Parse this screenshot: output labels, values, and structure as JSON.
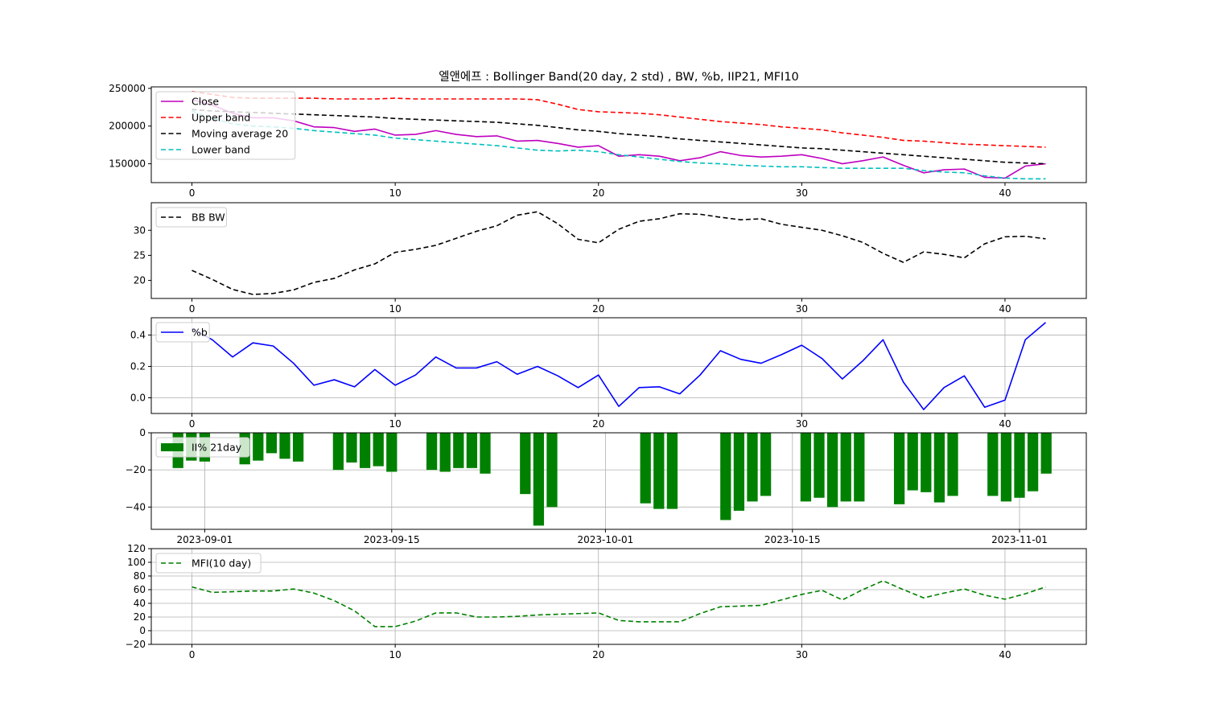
{
  "title": "엘앤에프 : Bollinger Band(20 day, 2 std) , BW, %b, IIP21, MFI10",
  "chart_data": [
    {
      "id": "bollinger",
      "type": "line",
      "x": [
        0,
        1,
        2,
        3,
        4,
        5,
        6,
        7,
        8,
        9,
        10,
        11,
        12,
        13,
        14,
        15,
        16,
        17,
        18,
        19,
        20,
        21,
        22,
        23,
        24,
        25,
        26,
        27,
        28,
        29,
        30,
        31,
        32,
        33,
        34,
        35,
        36,
        37,
        38,
        39,
        40,
        41,
        42
      ],
      "xlim": [
        -2,
        44
      ],
      "ylim": [
        125000,
        252000
      ],
      "xticks": [
        "0",
        "10",
        "20",
        "30",
        "40"
      ],
      "xtick_values": [
        0,
        10,
        20,
        30,
        40
      ],
      "yticks": [
        "150000",
        "200000",
        "250000"
      ],
      "ytick_values": [
        150000,
        200000,
        250000
      ],
      "legend_position": "upper-left",
      "series": [
        {
          "name": "Close",
          "color": "#bf00bf",
          "dash": "solid",
          "values": [
            235000,
            228000,
            217000,
            211000,
            211000,
            207000,
            199000,
            198000,
            193000,
            196000,
            188000,
            189000,
            194000,
            189000,
            186000,
            187000,
            180000,
            181000,
            177000,
            172000,
            174000,
            160000,
            162000,
            160000,
            154000,
            158000,
            166000,
            161000,
            159000,
            160000,
            162000,
            157000,
            150000,
            154000,
            159000,
            148000,
            138000,
            142000,
            143000,
            132000,
            131000,
            147000,
            150000
          ]
        },
        {
          "name": "Upper band",
          "color": "#ff0000",
          "dash": "dashed",
          "values": [
            246000,
            242000,
            238000,
            237000,
            237000,
            237000,
            237000,
            236000,
            236000,
            236000,
            237000,
            236000,
            236000,
            236000,
            236000,
            236000,
            236000,
            235000,
            229000,
            222000,
            219000,
            218000,
            217000,
            215000,
            212000,
            209000,
            206000,
            204000,
            202000,
            199000,
            197000,
            195000,
            191000,
            188000,
            185000,
            181000,
            180000,
            178000,
            176000,
            175000,
            174000,
            173000,
            172000
          ]
        },
        {
          "name": "Moving average 20",
          "color": "#000000",
          "dash": "dashed",
          "values": [
            222000,
            220000,
            219000,
            218000,
            217000,
            216000,
            215000,
            214000,
            213000,
            212000,
            210000,
            209000,
            208000,
            207000,
            206000,
            205000,
            203000,
            201000,
            198000,
            195000,
            193000,
            190000,
            188000,
            186000,
            183000,
            181000,
            179000,
            177000,
            175000,
            173000,
            171000,
            170000,
            168000,
            166000,
            164000,
            162000,
            160000,
            158000,
            156000,
            154000,
            152000,
            151000,
            150000
          ]
        },
        {
          "name": "Lower band",
          "color": "#00bfbf",
          "dash": "dashed",
          "values": [
            220000,
            210000,
            203000,
            200000,
            199000,
            197000,
            194000,
            192000,
            190000,
            188000,
            184000,
            182000,
            180000,
            178000,
            176000,
            174000,
            171000,
            168000,
            167000,
            168000,
            166000,
            162000,
            159000,
            156000,
            153000,
            151000,
            150000,
            148000,
            147000,
            146000,
            146000,
            145000,
            144000,
            144000,
            144000,
            144000,
            141000,
            139000,
            138000,
            134000,
            131000,
            130000,
            130000
          ]
        }
      ]
    },
    {
      "id": "bandwidth",
      "type": "line",
      "x": [
        0,
        1,
        2,
        3,
        4,
        5,
        6,
        7,
        8,
        9,
        10,
        11,
        12,
        13,
        14,
        15,
        16,
        17,
        18,
        19,
        20,
        21,
        22,
        23,
        24,
        25,
        26,
        27,
        28,
        29,
        30,
        31,
        32,
        33,
        34,
        35,
        36,
        37,
        38,
        39,
        40,
        41,
        42
      ],
      "xlim": [
        -2,
        44
      ],
      "ylim": [
        16.4,
        35.5
      ],
      "xticks": [
        "0",
        "10",
        "20",
        "30",
        "40"
      ],
      "xtick_values": [
        0,
        10,
        20,
        30,
        40
      ],
      "yticks": [
        "20",
        "25",
        "30"
      ],
      "ytick_values": [
        20,
        25,
        30
      ],
      "legend_position": "upper-left",
      "series": [
        {
          "name": "BB BW",
          "color": "#000000",
          "dash": "dashed",
          "values": [
            22.0,
            20.2,
            18.2,
            17.2,
            17.4,
            18.1,
            19.6,
            20.4,
            22.1,
            23.3,
            25.6,
            26.2,
            27.0,
            28.4,
            29.8,
            30.9,
            33.0,
            33.7,
            31.3,
            28.2,
            27.5,
            30.2,
            31.8,
            32.3,
            33.3,
            33.2,
            32.6,
            32.1,
            32.3,
            31.2,
            30.6,
            30.0,
            28.9,
            27.6,
            25.4,
            23.6,
            25.7,
            25.2,
            24.5,
            27.3,
            28.7,
            28.8,
            28.3
          ]
        }
      ]
    },
    {
      "id": "percent_b",
      "type": "line",
      "x": [
        0,
        1,
        2,
        3,
        4,
        5,
        6,
        7,
        8,
        9,
        10,
        11,
        12,
        13,
        14,
        15,
        16,
        17,
        18,
        19,
        20,
        21,
        22,
        23,
        24,
        25,
        26,
        27,
        28,
        29,
        30,
        31,
        32,
        33,
        34,
        35,
        36,
        37,
        38,
        39,
        40,
        41,
        42
      ],
      "xlim": [
        -2,
        44
      ],
      "ylim": [
        -0.1,
        0.51
      ],
      "xticks": [
        "0",
        "10",
        "20",
        "30",
        "40"
      ],
      "xtick_values": [
        0,
        10,
        20,
        30,
        40
      ],
      "yticks": [
        "0.0",
        "0.2",
        "0.4"
      ],
      "ytick_values": [
        0.0,
        0.2,
        0.4
      ],
      "grid": true,
      "legend_position": "upper-left",
      "series": [
        {
          "name": "%b",
          "color": "#0000ff",
          "dash": "solid",
          "values": [
            0.44,
            0.37,
            0.26,
            0.35,
            0.33,
            0.22,
            0.08,
            0.115,
            0.07,
            0.18,
            0.08,
            0.145,
            0.26,
            0.19,
            0.19,
            0.23,
            0.15,
            0.2,
            0.14,
            0.065,
            0.145,
            -0.055,
            0.065,
            0.07,
            0.025,
            0.145,
            0.3,
            0.245,
            0.22,
            0.275,
            0.335,
            0.25,
            0.12,
            0.235,
            0.37,
            0.1,
            -0.075,
            0.065,
            0.14,
            -0.06,
            -0.015,
            0.37,
            0.48
          ]
        }
      ]
    },
    {
      "id": "iip21",
      "type": "bar",
      "x_dates": [
        "2023-08-30",
        "2023-08-31",
        "2023-09-01",
        "2023-09-04",
        "2023-09-05",
        "2023-09-06",
        "2023-09-07",
        "2023-09-08",
        "2023-09-11",
        "2023-09-12",
        "2023-09-13",
        "2023-09-14",
        "2023-09-15",
        "2023-09-18",
        "2023-09-19",
        "2023-09-20",
        "2023-09-21",
        "2023-09-22",
        "2023-09-25",
        "2023-09-26",
        "2023-09-27",
        "2023-10-04",
        "2023-10-05",
        "2023-10-06",
        "2023-10-10",
        "2023-10-11",
        "2023-10-12",
        "2023-10-13",
        "2023-10-16",
        "2023-10-17",
        "2023-10-18",
        "2023-10-19",
        "2023-10-20",
        "2023-10-23",
        "2023-10-24",
        "2023-10-25",
        "2023-10-26",
        "2023-10-27",
        "2023-10-30",
        "2023-10-31",
        "2023-11-01",
        "2023-11-02",
        "2023-11-03"
      ],
      "values": [
        -19,
        -15,
        -15.5,
        -17,
        -15,
        -11,
        -14,
        -15.5,
        -20,
        -16,
        -19,
        -18,
        -21,
        -20,
        -21,
        -19,
        -19,
        -22,
        -33,
        -50,
        -40,
        -38,
        -41,
        -41,
        -47,
        -42,
        -37,
        -34,
        -37,
        -35,
        -40,
        -37,
        -37,
        -38.5,
        -31,
        -32,
        -37.5,
        -34,
        -34,
        -37,
        -35,
        -31.5,
        -22
      ],
      "xlim_dates": [
        "2023-08-28",
        "2023-11-06"
      ],
      "ylim": [
        -52,
        0
      ],
      "xticks": [
        "2023-09-01",
        "2023-09-15",
        "2023-10-01",
        "2023-10-15",
        "2023-11-01"
      ],
      "yticks": [
        "0",
        "−20",
        "−40"
      ],
      "ytick_values": [
        0,
        -20,
        -40
      ],
      "grid": true,
      "color": "#008000",
      "legend_position": "upper-left",
      "series": [
        {
          "name": "II% 21day",
          "color": "#008000"
        }
      ]
    },
    {
      "id": "mfi",
      "type": "line",
      "x": [
        0,
        1,
        2,
        3,
        4,
        5,
        6,
        7,
        8,
        9,
        10,
        11,
        12,
        13,
        14,
        15,
        16,
        17,
        18,
        19,
        20,
        21,
        22,
        23,
        24,
        25,
        26,
        27,
        28,
        29,
        30,
        31,
        32,
        33,
        34,
        35,
        36,
        37,
        38,
        39,
        40,
        41,
        42
      ],
      "xlim": [
        -2,
        44
      ],
      "ylim": [
        -20,
        120
      ],
      "xticks": [
        "0",
        "10",
        "20",
        "30",
        "40"
      ],
      "xtick_values": [
        0,
        10,
        20,
        30,
        40
      ],
      "yticks": [
        "−20",
        "0",
        "20",
        "40",
        "60",
        "80",
        "100",
        "120"
      ],
      "ytick_values": [
        -20,
        0,
        20,
        40,
        60,
        80,
        100,
        120
      ],
      "grid": true,
      "legend_position": "upper-left",
      "series": [
        {
          "name": "MFI(10 day)",
          "color": "#008000",
          "dash": "dashed",
          "values": [
            64,
            56,
            57,
            58,
            58,
            61,
            55,
            44,
            29,
            6,
            6,
            14,
            26,
            26,
            20,
            20,
            21,
            23,
            24,
            25,
            26,
            15,
            13,
            13,
            13,
            25,
            35,
            36,
            37,
            45,
            53,
            59,
            45,
            60,
            73,
            60,
            48,
            55,
            61,
            52,
            46,
            54,
            64
          ]
        }
      ]
    }
  ]
}
